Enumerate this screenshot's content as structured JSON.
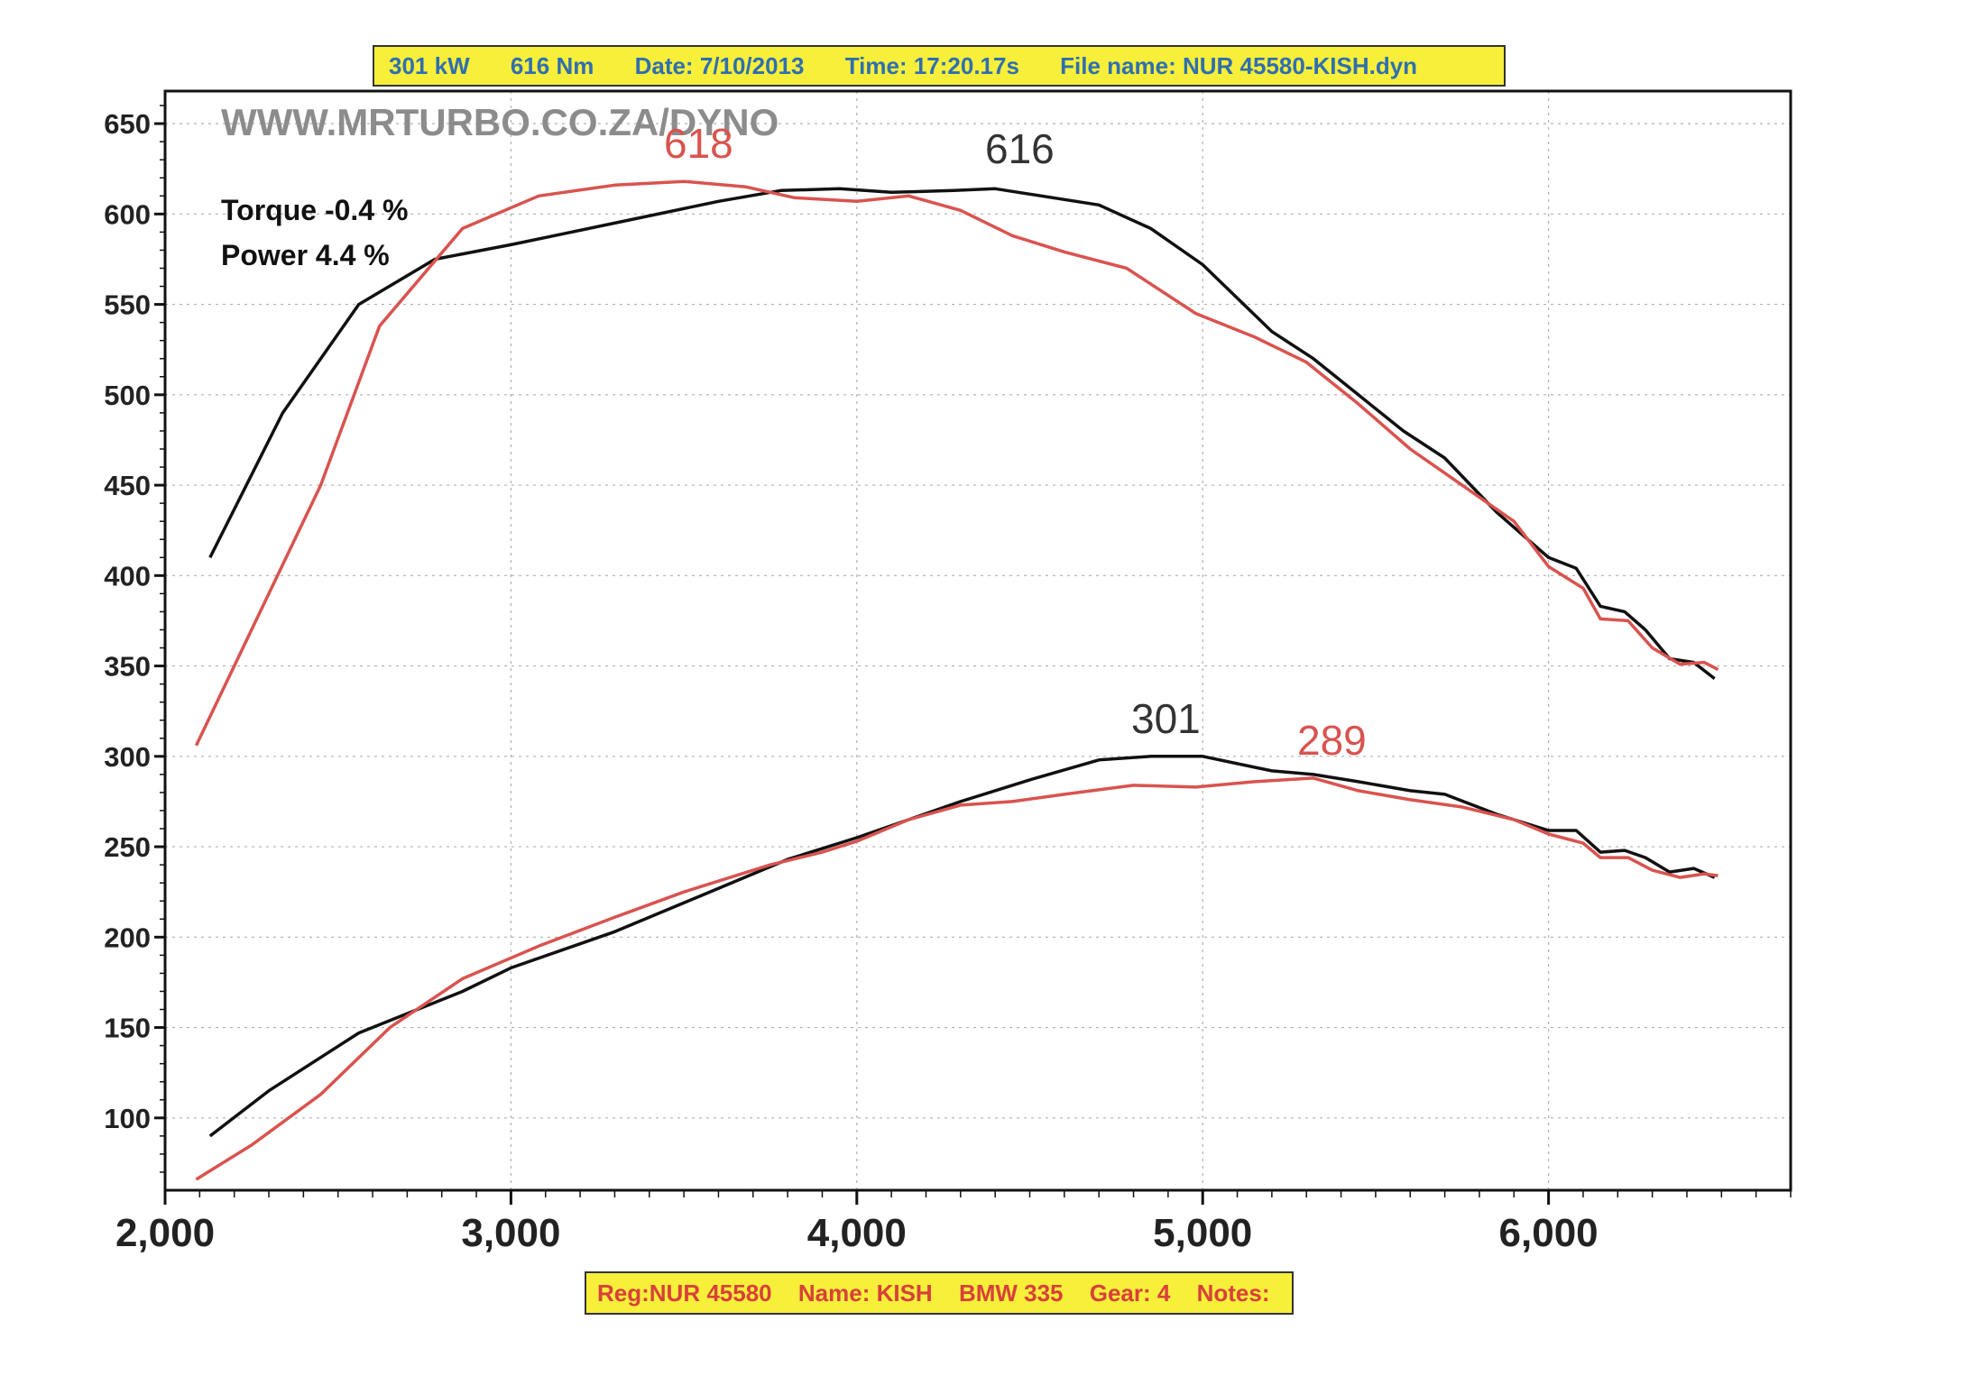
{
  "header": {
    "power": "301 kW",
    "torque": "616 Nm",
    "date": "Date: 7/10/2013",
    "time": "Time: 17:20.17s",
    "file": "File name: NUR 45580-KISH.dyn"
  },
  "footer": {
    "reg": "Reg:NUR 45580",
    "name": "Name: KISH",
    "car": "BMW 335",
    "gear": "Gear: 4",
    "notes": "Notes:"
  },
  "watermark": "WWW.MRTURBO.CO.ZA/DYNO",
  "annotations": {
    "torque_diff": "Torque -0.4 %",
    "power_diff": "Power 4.4 %"
  },
  "peaks": {
    "torque_black": "616",
    "torque_red": "618",
    "power_black": "301",
    "power_red": "289"
  },
  "colors": {
    "black_series": "#111111",
    "red_series": "#d9534f",
    "banner_bg": "#f7ef3a",
    "banner_top_text": "#2f6fb0",
    "banner_bottom_text": "#d8403a",
    "grid": "#b0b0b0"
  },
  "chart_data": {
    "type": "line",
    "xlim": [
      2000,
      6700
    ],
    "ylim": [
      60,
      668
    ],
    "grid": true,
    "x_ticks": [
      2000,
      3000,
      4000,
      5000,
      6000
    ],
    "x_tick_labels": [
      "2,000",
      "3,000",
      "4,000",
      "5,000",
      "6,000"
    ],
    "y_ticks": [
      100,
      150,
      200,
      250,
      300,
      350,
      400,
      450,
      500,
      550,
      600,
      650
    ],
    "y_tick_labels": [
      "100",
      "150",
      "200",
      "250",
      "300",
      "350",
      "400",
      "450",
      "500",
      "550",
      "600",
      "650"
    ],
    "series": [
      {
        "color": "#111111",
        "x": [
          2130,
          2340,
          2560,
          2780,
          3000,
          3300,
          3600,
          3780,
          3950,
          4100,
          4280,
          4400,
          4500,
          4700,
          4850,
          5000,
          5200,
          5320,
          5450,
          5580,
          5700,
          5850,
          6000,
          6080,
          6150,
          6220,
          6280,
          6350,
          6420,
          6480
        ],
        "y": [
          410,
          490,
          550,
          575,
          583,
          595,
          607,
          613,
          614,
          612,
          613,
          614,
          611,
          605,
          592,
          572,
          535,
          520,
          500,
          480,
          465,
          435,
          410,
          404,
          383,
          380,
          370,
          354,
          352,
          343
        ]
      },
      {
        "color": "#d9534f",
        "x": [
          2090,
          2300,
          2450,
          2620,
          2860,
          3080,
          3300,
          3500,
          3680,
          3820,
          4000,
          4150,
          4300,
          4450,
          4600,
          4780,
          4980,
          5150,
          5300,
          5450,
          5600,
          5750,
          5900,
          6000,
          6100,
          6150,
          6230,
          6300,
          6380,
          6450,
          6490
        ],
        "y": [
          306,
          390,
          450,
          538,
          592,
          610,
          616,
          618,
          615,
          609,
          607,
          610,
          602,
          588,
          579,
          570,
          545,
          532,
          518,
          495,
          470,
          450,
          430,
          405,
          393,
          376,
          375,
          360,
          351,
          352,
          348
        ]
      },
      {
        "color": "#111111",
        "x": [
          2130,
          2300,
          2560,
          2860,
          3000,
          3300,
          3550,
          3800,
          4000,
          4150,
          4300,
          4500,
          4700,
          4850,
          5000,
          5200,
          5320,
          5450,
          5600,
          5700,
          5850,
          6000,
          6080,
          6150,
          6220,
          6280,
          6350,
          6420,
          6480
        ],
        "y": [
          90,
          115,
          147,
          170,
          183,
          203,
          223,
          243,
          255,
          265,
          275,
          287,
          298,
          300,
          300,
          292,
          290,
          286,
          281,
          279,
          268,
          259,
          259,
          247,
          248,
          244,
          236,
          238,
          233
        ]
      },
      {
        "color": "#d9534f",
        "x": [
          2090,
          2250,
          2450,
          2650,
          2860,
          3080,
          3300,
          3500,
          3750,
          3900,
          4000,
          4150,
          4300,
          4450,
          4600,
          4800,
          4980,
          5150,
          5320,
          5450,
          5600,
          5750,
          5900,
          6000,
          6100,
          6150,
          6230,
          6300,
          6380,
          6450,
          6490
        ],
        "y": [
          66,
          85,
          113,
          150,
          177,
          195,
          211,
          225,
          240,
          247,
          253,
          265,
          273,
          275,
          279,
          284,
          283,
          286,
          288,
          281,
          276,
          272,
          265,
          257,
          252,
          244,
          244,
          237,
          233,
          235,
          234
        ]
      }
    ]
  }
}
